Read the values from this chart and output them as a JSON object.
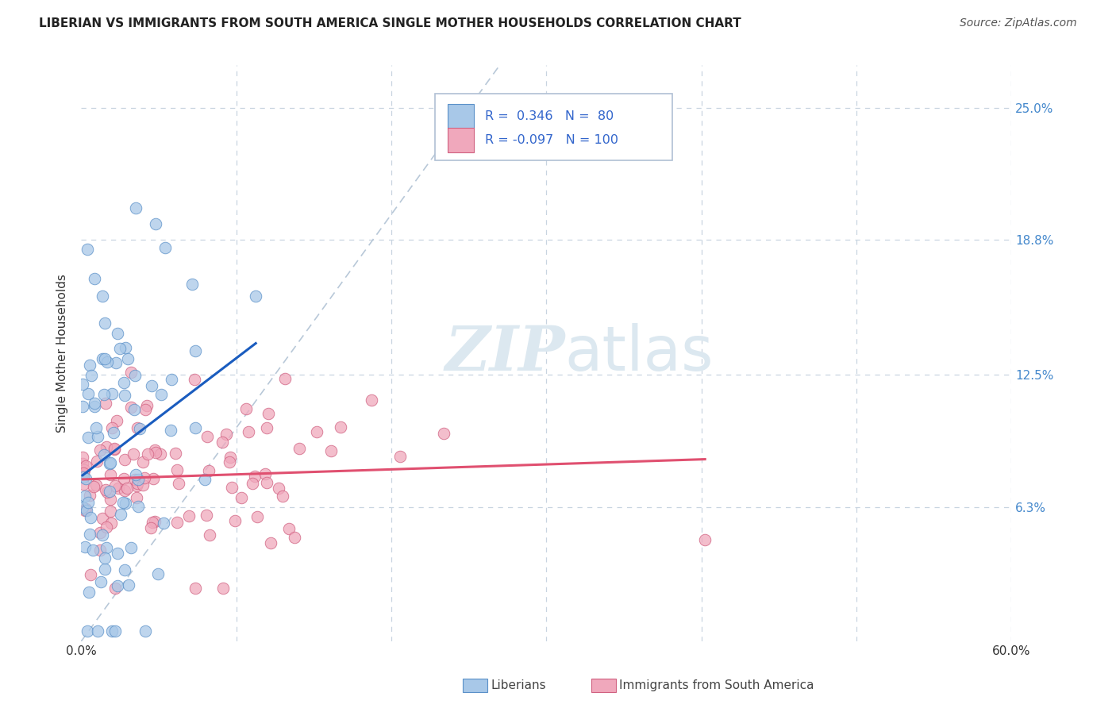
{
  "title": "LIBERIAN VS IMMIGRANTS FROM SOUTH AMERICA SINGLE MOTHER HOUSEHOLDS CORRELATION CHART",
  "source": "Source: ZipAtlas.com",
  "ylabel": "Single Mother Households",
  "xlim": [
    0.0,
    0.6
  ],
  "ylim": [
    0.0,
    0.27
  ],
  "yticks": [
    0.063,
    0.125,
    0.188,
    0.25
  ],
  "ytick_labels": [
    "6.3%",
    "12.5%",
    "18.8%",
    "25.0%"
  ],
  "xticks": [
    0.0,
    0.1,
    0.2,
    0.3,
    0.4,
    0.5,
    0.6
  ],
  "xtick_labels": [
    "0.0%",
    "",
    "",
    "",
    "",
    "",
    "60.0%"
  ],
  "liberian_R": 0.346,
  "liberian_N": 80,
  "south_america_R": -0.097,
  "south_america_N": 100,
  "liberian_color": "#a8c8e8",
  "south_america_color": "#f0a8bc",
  "liberian_edge_color": "#5a90c8",
  "south_america_edge_color": "#d06080",
  "liberian_line_color": "#1a5cbf",
  "south_america_line_color": "#e05070",
  "diagonal_line_color": "#b8c8d8",
  "legend_text_color": "#3366cc",
  "background_color": "#ffffff",
  "grid_color": "#c8d4e0",
  "watermark_color": "#dce8f0",
  "title_color": "#222222",
  "source_color": "#555555",
  "tick_color": "#333333",
  "right_tick_color": "#4488cc"
}
